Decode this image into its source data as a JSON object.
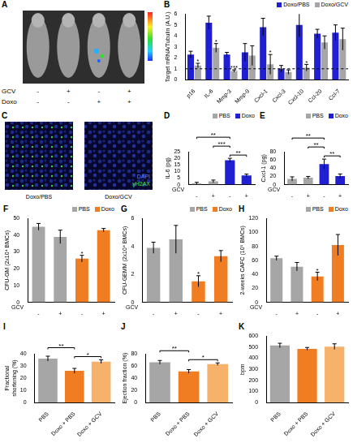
{
  "panels": [
    {
      "letter": "A",
      "type": "image",
      "rows": [
        {
          "label": "GCV",
          "values": [
            "-",
            "+",
            "-",
            "+"
          ]
        },
        {
          "label": "Doxo",
          "values": [
            "-",
            "-",
            "+",
            "+"
          ]
        }
      ]
    },
    {
      "letter": "C",
      "type": "image",
      "captions": [
        "Doxo/PBS",
        "Doxo/GCV"
      ],
      "stains": [
        {
          "name": "DAPI",
          "color": "#5a86ff"
        },
        {
          "name": "γH2AX",
          "color": "#44ee44"
        }
      ]
    }
  ],
  "chart_data": [
    {
      "panel": "B",
      "type": "bar",
      "categories": [
        "p16",
        "IL-6",
        "Mmp-3",
        "Mmp-9",
        "Cxcl-1",
        "Cxcl-3",
        "Cxcl-10",
        "Ccl-20",
        "Ccl-7"
      ],
      "series": [
        {
          "name": "Doxo/PBS",
          "color": "#2020d0",
          "values": [
            2.3,
            5.2,
            2.3,
            2.5,
            4.8,
            1.0,
            5.0,
            4.2,
            4.3
          ],
          "errors": [
            0.3,
            0.6,
            0.2,
            0.8,
            0.8,
            0.3,
            1.1,
            0.4,
            0.7
          ]
        },
        {
          "name": "Doxo/GCV",
          "color": "#a6a6a6",
          "values": [
            1.3,
            2.9,
            0.8,
            2.2,
            1.4,
            0.7,
            1.1,
            3.4,
            3.7
          ],
          "errors": [
            0.2,
            0.4,
            0.1,
            0.9,
            0.9,
            0.2,
            0.3,
            0.6,
            1.0
          ]
        }
      ],
      "ylabel": "Target mRNA/Tubulin (A.U.)",
      "ylim": [
        0,
        6
      ],
      "yticks": [
        0,
        1,
        2,
        3,
        4,
        5,
        6
      ],
      "hline": 1,
      "legend": "top right",
      "grid": false,
      "annotations": [
        {
          "category": "p16",
          "series": "Doxo/GCV",
          "text": "*"
        },
        {
          "category": "IL-6",
          "series": "Doxo/GCV",
          "text": "*"
        },
        {
          "category": "Mmp-3",
          "series": "Doxo/GCV",
          "text": "***"
        },
        {
          "category": "Cxcl-1",
          "series": "Doxo/GCV",
          "text": "*"
        },
        {
          "category": "Cxcl-10",
          "series": "Doxo/GCV",
          "text": "*"
        }
      ]
    },
    {
      "panel": "D",
      "type": "bar",
      "categories": [
        "-",
        "+",
        "-",
        "+"
      ],
      "xlabel": "GCV",
      "series": [
        {
          "name": "PBS",
          "color": "#a6a6a6",
          "values": [
            1,
            2.5,
            null,
            null
          ],
          "errors": [
            0.8,
            1,
            null,
            null
          ]
        },
        {
          "name": "Doxo",
          "color": "#2020d0",
          "values": [
            null,
            null,
            18.5,
            7
          ],
          "errors": [
            null,
            null,
            1.5,
            1
          ]
        }
      ],
      "ylabel": "IL-6 (pg)",
      "ylim": [
        0,
        25
      ],
      "yticks": [
        0,
        5,
        10,
        15,
        20,
        25
      ],
      "legend": "top right",
      "grid": false,
      "brackets": [
        {
          "from": 2,
          "to": 3,
          "text": "**"
        },
        {
          "from": 1,
          "to": 2,
          "text": "***"
        },
        {
          "from": 0,
          "to": 2,
          "text": "**"
        }
      ]
    },
    {
      "panel": "E",
      "type": "bar",
      "categories": [
        "-",
        "+",
        "-",
        "+"
      ],
      "xlabel": "GCV",
      "series": [
        {
          "name": "PBS",
          "color": "#a6a6a6",
          "values": [
            14,
            17,
            null,
            null
          ],
          "errors": [
            5,
            3,
            null,
            null
          ]
        },
        {
          "name": "Doxo",
          "color": "#2020d0",
          "values": [
            null,
            null,
            50,
            21
          ],
          "errors": [
            null,
            null,
            12,
            5
          ]
        }
      ],
      "ylabel": "Cxcl-1 (pg)",
      "ylim": [
        0,
        80
      ],
      "yticks": [
        0,
        20,
        40,
        60,
        80
      ],
      "legend": "top right",
      "grid": false,
      "brackets": [
        {
          "from": 2,
          "to": 3,
          "text": "**"
        },
        {
          "from": 1,
          "to": 2,
          "text": "**"
        },
        {
          "from": 0,
          "to": 2,
          "text": "**"
        }
      ]
    },
    {
      "panel": "F",
      "type": "bar",
      "categories": [
        "-",
        "+",
        "-",
        "+"
      ],
      "xlabel": "GCV",
      "series": [
        {
          "name": "PBS",
          "color": "#a6a6a6",
          "values": [
            45,
            39,
            null,
            null
          ],
          "errors": [
            2,
            4,
            null,
            null
          ]
        },
        {
          "name": "Doxo",
          "color": "#f07d22",
          "values": [
            null,
            null,
            26,
            43
          ],
          "errors": [
            null,
            null,
            2,
            1
          ]
        }
      ],
      "ylabel": "CFU-GM (2x10⁴ BMCs)",
      "ylim": [
        0,
        50
      ],
      "yticks": [
        0,
        10,
        20,
        30,
        40,
        50
      ],
      "legend": "top right",
      "grid": false,
      "annotations": [
        {
          "at": 2,
          "text": "*"
        }
      ]
    },
    {
      "panel": "G",
      "type": "bar",
      "categories": [
        "-",
        "+",
        "-",
        "+"
      ],
      "xlabel": "GCV",
      "series": [
        {
          "name": "PBS",
          "color": "#a6a6a6",
          "values": [
            3.9,
            4.5,
            null,
            null
          ],
          "errors": [
            0.4,
            1.0,
            null,
            null
          ]
        },
        {
          "name": "Doxo",
          "color": "#f07d22",
          "values": [
            null,
            null,
            1.5,
            3.3
          ],
          "errors": [
            null,
            null,
            0.4,
            0.4
          ]
        }
      ],
      "ylabel": "CFU-GEMM (2x10⁴ BMCs)",
      "ylim": [
        0,
        6
      ],
      "yticks": [
        0,
        2,
        4,
        6
      ],
      "legend": "top right",
      "grid": false,
      "annotations": [
        {
          "at": 2,
          "text": "*"
        }
      ]
    },
    {
      "panel": "H",
      "type": "bar",
      "categories": [
        "-",
        "+",
        "-",
        "+"
      ],
      "xlabel": "GCV",
      "series": [
        {
          "name": "PBS",
          "color": "#a6a6a6",
          "values": [
            63,
            51,
            null,
            null
          ],
          "errors": [
            3,
            6,
            null,
            null
          ]
        },
        {
          "name": "Doxo",
          "color": "#f07d22",
          "values": [
            null,
            null,
            37,
            82
          ],
          "errors": [
            null,
            null,
            6,
            15
          ]
        }
      ],
      "ylabel": "2-weeks CAFC (10⁵ BMCs)",
      "ylim": [
        0,
        120
      ],
      "yticks": [
        0,
        20,
        40,
        60,
        80,
        100,
        120
      ],
      "legend": "top right",
      "grid": false,
      "annotations": [
        {
          "at": 2,
          "text": "*"
        }
      ]
    },
    {
      "panel": "I",
      "type": "bar",
      "categories": [
        "PBS",
        "Doxo + PBS",
        "Doxo + GCV"
      ],
      "values": [
        36,
        26,
        33.5
      ],
      "errors": [
        2,
        2,
        1.5
      ],
      "colors": [
        "#a6a6a6",
        "#f07d22",
        "#f6b26b"
      ],
      "ylabel": "Fractional shortening (%)",
      "ylim": [
        0,
        40
      ],
      "yticks": [
        0,
        10,
        20,
        30,
        40
      ],
      "grid": false,
      "brackets": [
        {
          "from": 1,
          "to": 2,
          "text": "*"
        },
        {
          "from": 0,
          "to": 1,
          "text": "**"
        }
      ]
    },
    {
      "panel": "J",
      "type": "bar",
      "categories": [
        "PBS",
        "Doxo + PBS",
        "Doxo + GCV"
      ],
      "values": [
        66,
        51,
        63
      ],
      "errors": [
        3,
        3,
        2
      ],
      "colors": [
        "#a6a6a6",
        "#f07d22",
        "#f6b26b"
      ],
      "ylabel": "Ejection fraction (%)",
      "ylim": [
        0,
        80
      ],
      "yticks": [
        0,
        20,
        40,
        60,
        80
      ],
      "grid": false,
      "brackets": [
        {
          "from": 1,
          "to": 2,
          "text": "*"
        },
        {
          "from": 0,
          "to": 1,
          "text": "**"
        }
      ]
    },
    {
      "panel": "K",
      "type": "bar",
      "categories": [
        "PBS",
        "Doxo + PBS",
        "Doxo + GCV"
      ],
      "values": [
        515,
        485,
        505
      ],
      "errors": [
        20,
        12,
        25
      ],
      "colors": [
        "#a6a6a6",
        "#f07d22",
        "#f6b26b"
      ],
      "ylabel": "bpm",
      "ylim": [
        0,
        600
      ],
      "yticks": [
        0,
        100,
        200,
        300,
        400,
        500,
        600
      ],
      "grid": false
    }
  ]
}
